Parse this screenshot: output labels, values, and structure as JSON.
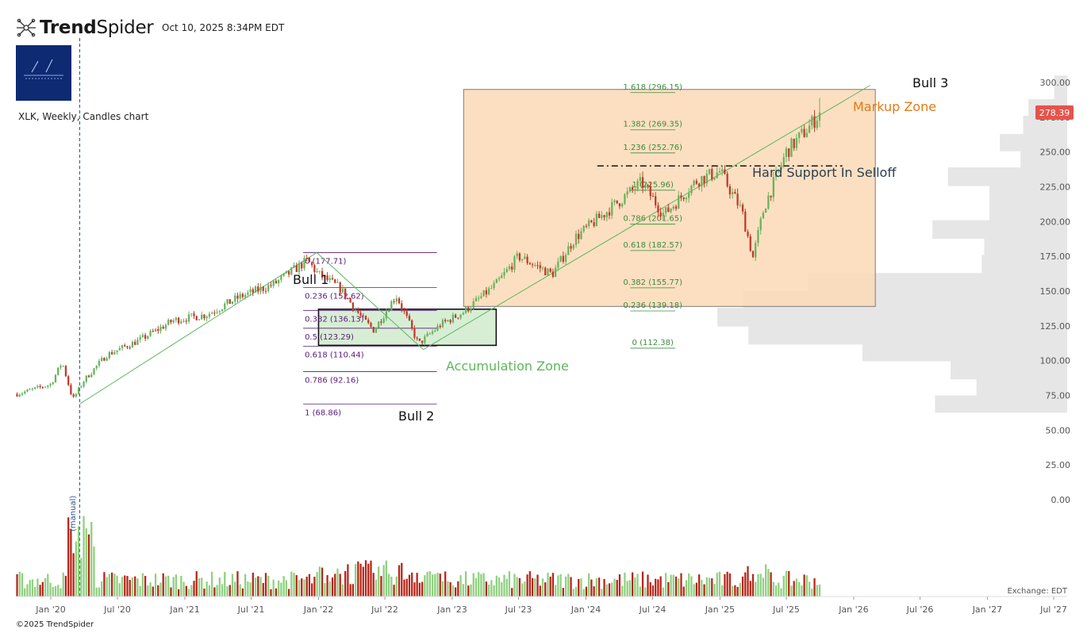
{
  "header": {
    "brand_bold": "Trend",
    "brand_light": "Spider",
    "timestamp": "Oct 10, 2025 8:34PM EDT",
    "subtitle": "XLK, Weekly, Candles chart",
    "copyright": "©2025 TrendSpider",
    "exchange": "Exchange: EDT"
  },
  "colors": {
    "up": "#66b35e",
    "down": "#c0392b",
    "up_volume": "#8fd07f",
    "down_volume": "#b82417",
    "price_badge": "#e5534b",
    "markup_zone": "#fcd9b6",
    "accumulation_zone": "#d3ecd0",
    "fib_purple": "#5a1a7a",
    "fib_green": "#3d8b3d",
    "trendline": "#5cb85c",
    "volume_profile": "#e6e6e6"
  },
  "chart_data": {
    "type": "candlestick",
    "symbol": "XLK",
    "interval": "Weekly",
    "current_price": 278.39,
    "y_axis": {
      "ticks": [
        "300.00",
        "275.00",
        "250.00",
        "225.00",
        "200.00",
        "175.00",
        "150.00",
        "125.00",
        "100.00",
        "75.00",
        "50.00",
        "25.00",
        "0.00"
      ],
      "tick_values": [
        300,
        275,
        250,
        225,
        200,
        175,
        150,
        125,
        100,
        75,
        50,
        25,
        0
      ],
      "ylim": [
        -9,
        313
      ]
    },
    "x_axis": {
      "ticks": [
        "Jan '20",
        "Jul '20",
        "Jan '21",
        "Jul '21",
        "Jan '22",
        "Jul '22",
        "Jan '23",
        "Jul '23",
        "Jan '24",
        "Jul '24",
        "Jan '25",
        "Jul '25",
        "Jan '26",
        "Jul '26",
        "Jan '27",
        "Jul '27"
      ],
      "tick_dates": [
        "2020-01",
        "2020-07",
        "2021-01",
        "2021-07",
        "2022-01",
        "2022-07",
        "2023-01",
        "2023-07",
        "2024-01",
        "2024-07",
        "2025-01",
        "2025-07",
        "2026-01",
        "2026-07",
        "2027-01",
        "2027-07"
      ]
    },
    "price_path": [
      {
        "date": "2019-10",
        "close": 76
      },
      {
        "date": "2020-01",
        "close": 83
      },
      {
        "date": "2020-02",
        "close": 99
      },
      {
        "date": "2020-03",
        "close": 72
      },
      {
        "date": "2020-04",
        "close": 86
      },
      {
        "date": "2020-06",
        "close": 104
      },
      {
        "date": "2020-09",
        "close": 115
      },
      {
        "date": "2020-12",
        "close": 129
      },
      {
        "date": "2021-03",
        "close": 133
      },
      {
        "date": "2021-06",
        "close": 146
      },
      {
        "date": "2021-09",
        "close": 155
      },
      {
        "date": "2021-12",
        "close": 172
      },
      {
        "date": "2022-01",
        "close": 162
      },
      {
        "date": "2022-03",
        "close": 152
      },
      {
        "date": "2022-05",
        "close": 130
      },
      {
        "date": "2022-06",
        "close": 122
      },
      {
        "date": "2022-08",
        "close": 147
      },
      {
        "date": "2022-10",
        "close": 112
      },
      {
        "date": "2022-12",
        "close": 126
      },
      {
        "date": "2023-02",
        "close": 135
      },
      {
        "date": "2023-05",
        "close": 155
      },
      {
        "date": "2023-07",
        "close": 175
      },
      {
        "date": "2023-10",
        "close": 162
      },
      {
        "date": "2023-12",
        "close": 188
      },
      {
        "date": "2024-03",
        "close": 208
      },
      {
        "date": "2024-06",
        "close": 228
      },
      {
        "date": "2024-08",
        "close": 205
      },
      {
        "date": "2024-11",
        "close": 230
      },
      {
        "date": "2025-01",
        "close": 236
      },
      {
        "date": "2025-03",
        "close": 208
      },
      {
        "date": "2025-04",
        "close": 174
      },
      {
        "date": "2025-05",
        "close": 210
      },
      {
        "date": "2025-07",
        "close": 250
      },
      {
        "date": "2025-09",
        "close": 268
      },
      {
        "date": "2025-10",
        "close": 278.39
      }
    ],
    "fib_retracement": {
      "levels": [
        {
          "label": "0 (177.71)",
          "value": 177.71
        },
        {
          "label": "0.236 (152.62)",
          "value": 152.62
        },
        {
          "label": "0.382 (136.13)",
          "value": 136.13
        },
        {
          "label": "0.5 (123.29)",
          "value": 123.29
        },
        {
          "label": "0.618 (110.44)",
          "value": 110.44
        },
        {
          "label": "0.786 (92.16)",
          "value": 92.16
        },
        {
          "label": "1 (68.86)",
          "value": 68.86
        }
      ],
      "start_date": "2022-01",
      "end_date": "2022-10"
    },
    "fib_extension": {
      "levels": [
        {
          "label": "1.618 (296.15)",
          "value": 296.15
        },
        {
          "label": "1.382 (269.35)",
          "value": 269.35
        },
        {
          "label": "1.236 (252.76)",
          "value": 252.76
        },
        {
          "label": "1 (225.96)",
          "value": 225.96
        },
        {
          "label": "0.786 (201.65)",
          "value": 201.65
        },
        {
          "label": "0.618 (182.57)",
          "value": 182.57
        },
        {
          "label": "0.382 (155.77)",
          "value": 155.77
        },
        {
          "label": "0.236 (139.18)",
          "value": 139.18
        },
        {
          "label": "0 (112.38)",
          "value": 112.38
        }
      ]
    },
    "annotations": [
      {
        "text": "Bull 1",
        "date": "2021-12",
        "value": 177.71
      },
      {
        "text": "Bull 2",
        "date": "2022-10",
        "value": 108
      },
      {
        "text": "Bull 3",
        "date": "2026-02",
        "value": 298
      },
      {
        "text": "Markup Zone"
      },
      {
        "text": "Accumulation Zone"
      },
      {
        "text": "Hard Support In Selloff",
        "value": 240
      }
    ],
    "zones": [
      {
        "name": "Markup Zone",
        "start_date": "2023-02",
        "end_date": "2026-03",
        "low": 139,
        "high": 295
      },
      {
        "name": "Accumulation Zone",
        "start_date": "2022-01",
        "end_date": "2023-05",
        "low": 111,
        "high": 137
      }
    ],
    "support_level": {
      "label": "Hard Support In Selloff",
      "value": 240,
      "start_date": "2024-02",
      "end_date": "2025-12"
    },
    "vertical_marker": {
      "label": "(manual)",
      "date": "2020-03"
    },
    "volume_panel": {
      "ylim": [
        0,
        53
      ]
    },
    "volume_profile": [
      {
        "low": 287,
        "high": 305,
        "volume": 5
      },
      {
        "low": 275,
        "high": 288,
        "volume": 15
      },
      {
        "low": 262,
        "high": 276,
        "volume": 17
      },
      {
        "low": 250,
        "high": 263,
        "volume": 26
      },
      {
        "low": 238,
        "high": 251,
        "volume": 18
      },
      {
        "low": 225,
        "high": 239,
        "volume": 46
      },
      {
        "low": 212,
        "high": 226,
        "volume": 30
      },
      {
        "low": 200,
        "high": 213,
        "volume": 30
      },
      {
        "low": 187,
        "high": 201,
        "volume": 52
      },
      {
        "low": 175,
        "high": 188,
        "volume": 32
      },
      {
        "low": 162,
        "high": 176,
        "volume": 33
      },
      {
        "low": 149,
        "high": 163,
        "volume": 100
      },
      {
        "low": 137,
        "high": 150,
        "volume": 125
      },
      {
        "low": 124,
        "high": 138,
        "volume": 135
      },
      {
        "low": 111,
        "high": 125,
        "volume": 123
      },
      {
        "low": 99,
        "high": 112,
        "volume": 79
      },
      {
        "low": 86,
        "high": 100,
        "volume": 45
      },
      {
        "low": 74,
        "high": 87,
        "volume": 35
      },
      {
        "low": 62,
        "high": 75,
        "volume": 51
      }
    ]
  }
}
